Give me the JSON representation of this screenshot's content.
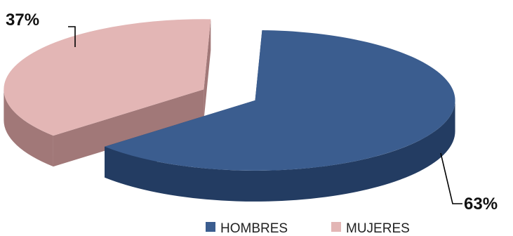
{
  "chart_data": {
    "type": "pie",
    "style": "3d-exploded",
    "categories": [
      "HOMBRES",
      "MUJERES"
    ],
    "values": [
      63,
      37
    ],
    "data_labels": [
      "63%",
      "37%"
    ],
    "colors": {
      "HOMBRES": {
        "top": "#3b5d8f",
        "side": "#233c62"
      },
      "MUJERES": {
        "top": "#e3b6b5",
        "side": "#a17878"
      }
    },
    "title": "",
    "legend": {
      "position": "bottom",
      "entries": [
        "HOMBRES",
        "MUJERES"
      ]
    }
  }
}
